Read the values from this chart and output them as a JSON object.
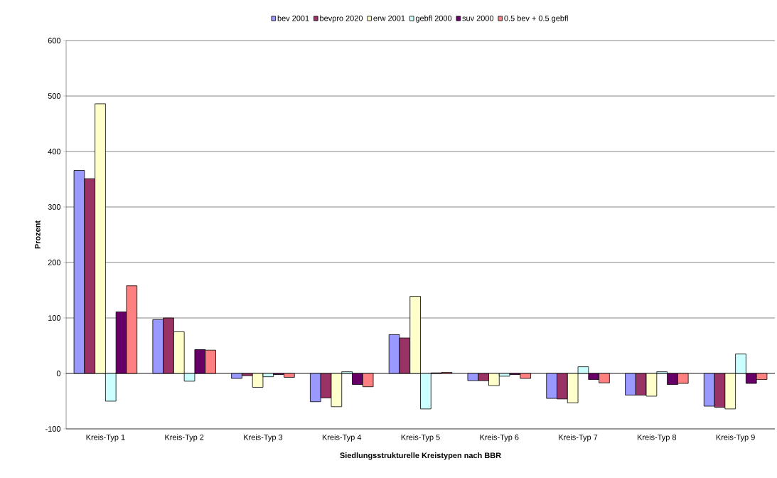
{
  "chart_data": {
    "type": "bar",
    "xlabel": "Siedlungsstrukturelle Kreistypen nach BBR",
    "ylabel": "Prozent",
    "categories": [
      "Kreis-Typ 1",
      "Kreis-Typ 2",
      "Kreis-Typ 3",
      "Kreis-Typ 4",
      "Kreis-Typ 5",
      "Kreis-Typ 6",
      "Kreis-Typ 7",
      "Kreis-Typ 8",
      "Kreis-Typ 9"
    ],
    "series": [
      {
        "name": "bev 2001",
        "color": "#9999ff",
        "values": [
          366,
          97,
          -9,
          -51,
          70,
          -13,
          -45,
          -39,
          -59
        ]
      },
      {
        "name": "bevpro 2020",
        "color": "#993366",
        "values": [
          351,
          100,
          -4,
          -44,
          64,
          -13,
          -46,
          -39,
          -61
        ]
      },
      {
        "name": "erw 2001",
        "color": "#ffffcc",
        "values": [
          486,
          75,
          -25,
          -60,
          139,
          -22,
          -53,
          -41,
          -64
        ]
      },
      {
        "name": "gebfl 2000",
        "color": "#ccffff",
        "values": [
          -50,
          -14,
          -6,
          3,
          -64,
          -5,
          12,
          3,
          35
        ]
      },
      {
        "name": "suv 2000",
        "color": "#660066",
        "values": [
          111,
          43,
          -2,
          -20,
          1,
          -2,
          -11,
          -20,
          -18
        ]
      },
      {
        "name": "0.5 bev + 0.5 gebfl",
        "color": "#ff8080",
        "values": [
          158,
          42,
          -7,
          -24,
          2,
          -9,
          -17,
          -18,
          -11
        ]
      }
    ],
    "ylim": [
      -100,
      600
    ],
    "yticks": [
      -100,
      0,
      100,
      200,
      300,
      400,
      500,
      600
    ],
    "grid": "y",
    "legend": "top"
  }
}
